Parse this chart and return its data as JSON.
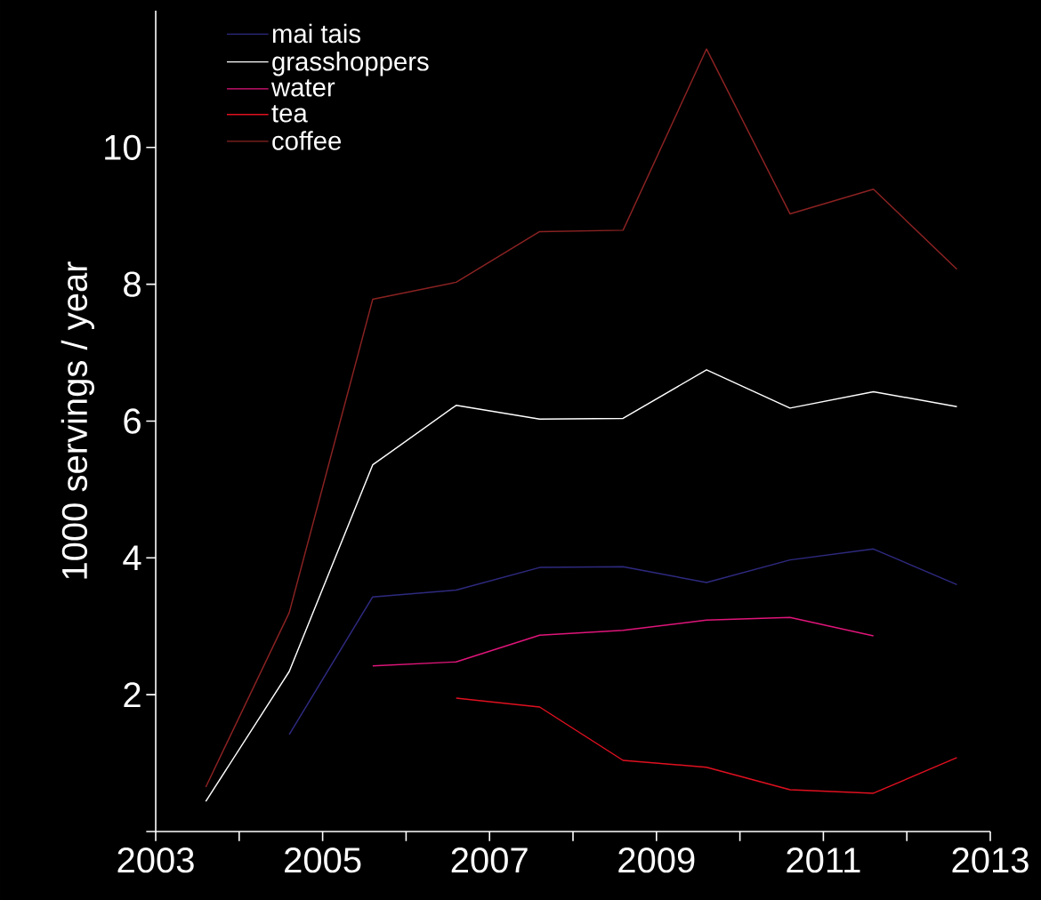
{
  "chart_data": {
    "type": "line",
    "ylabel": "1000 servings / year",
    "x": [
      2003.6,
      2004.6,
      2005.6,
      2006.6,
      2007.6,
      2008.6,
      2009.6,
      2010.6,
      2011.6,
      2012.6
    ],
    "series": [
      {
        "name": "mai tais",
        "color": "#2e2a80",
        "values": [
          null,
          1.42,
          3.43,
          3.53,
          3.86,
          3.87,
          3.64,
          3.97,
          4.13,
          3.61
        ]
      },
      {
        "name": "grasshoppers",
        "color": "#ffffff",
        "values": [
          0.44,
          2.34,
          5.36,
          6.23,
          6.03,
          6.04,
          6.75,
          6.19,
          6.43,
          6.21
        ]
      },
      {
        "name": "water",
        "color": "#e0157a",
        "values": [
          null,
          null,
          2.42,
          2.48,
          2.87,
          2.94,
          3.09,
          3.13,
          2.86,
          null
        ]
      },
      {
        "name": "tea",
        "color": "#e01020",
        "values": [
          null,
          null,
          null,
          1.95,
          1.82,
          1.04,
          0.94,
          0.61,
          0.56,
          1.08
        ]
      },
      {
        "name": "coffee",
        "color": "#8b2222",
        "values": [
          0.65,
          3.2,
          7.78,
          8.03,
          8.77,
          8.79,
          11.44,
          9.03,
          9.39,
          8.22
        ]
      }
    ],
    "xlim": [
      2003,
      2013
    ],
    "xticks": [
      2003,
      {
        "value": 2004,
        "label": null
      },
      2005,
      {
        "value": 2006,
        "label": null
      },
      2007,
      {
        "value": 2008,
        "label": null
      },
      2009,
      {
        "value": 2010,
        "label": null
      },
      2011,
      {
        "value": 2012,
        "label": null
      },
      2013
    ],
    "ylim": [
      0,
      12
    ],
    "yticks": [
      {
        "value": 0,
        "label": null
      },
      2,
      4,
      6,
      8,
      10
    ],
    "legend": "top left",
    "grid": false,
    "marker": "none",
    "line_style": "solid"
  }
}
